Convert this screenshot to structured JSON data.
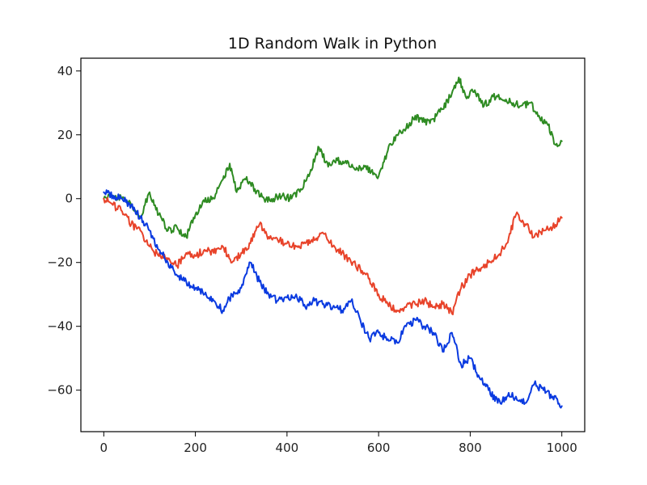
{
  "chart_data": {
    "type": "line",
    "title": "1D Random Walk in Python",
    "xlabel": "",
    "ylabel": "",
    "xlim": [
      -50,
      1050
    ],
    "ylim": [
      -73,
      44
    ],
    "xticks": [
      0,
      200,
      400,
      600,
      800,
      1000
    ],
    "yticks": [
      40,
      20,
      0,
      -20,
      -40,
      -60
    ],
    "tick_labels_x": [
      "0",
      "200",
      "400",
      "600",
      "800",
      "1000"
    ],
    "tick_labels_y": [
      "40",
      "20",
      "0",
      "−20",
      "−40",
      "−60"
    ],
    "grid": false,
    "legend": "none",
    "series": [
      {
        "color": "#2e8b22",
        "x": [
          0,
          20,
          40,
          60,
          80,
          100,
          120,
          140,
          160,
          180,
          200,
          220,
          240,
          260,
          275,
          290,
          310,
          330,
          350,
          370,
          390,
          410,
          430,
          450,
          470,
          490,
          510,
          530,
          550,
          570,
          590,
          600,
          620,
          640,
          660,
          680,
          700,
          720,
          740,
          760,
          775,
          790,
          810,
          830,
          850,
          870,
          890,
          910,
          930,
          950,
          970,
          985,
          1000
        ],
        "y": [
          0,
          1,
          0,
          -2,
          -6,
          2,
          -5,
          -10,
          -9,
          -12,
          -5,
          -1,
          0,
          6,
          11,
          2,
          6,
          3,
          0,
          0,
          1,
          0,
          3,
          8,
          16,
          10,
          12,
          11,
          9,
          10,
          8,
          7,
          15,
          20,
          22,
          26,
          24,
          25,
          28,
          33,
          38,
          32,
          34,
          29,
          32,
          31,
          30,
          29,
          30,
          26,
          23,
          17,
          18
        ]
      },
      {
        "color": "#e8432a",
        "x": [
          0,
          20,
          40,
          60,
          80,
          100,
          120,
          140,
          160,
          180,
          200,
          220,
          240,
          260,
          280,
          300,
          320,
          340,
          360,
          380,
          400,
          420,
          440,
          460,
          480,
          500,
          520,
          540,
          560,
          580,
          600,
          620,
          640,
          660,
          680,
          700,
          720,
          740,
          760,
          780,
          800,
          820,
          840,
          860,
          880,
          900,
          920,
          940,
          960,
          980,
          1000
        ],
        "y": [
          0,
          -2,
          -4,
          -8,
          -10,
          -15,
          -18,
          -19,
          -21,
          -17,
          -18,
          -16,
          -17,
          -15,
          -20,
          -17,
          -14,
          -8,
          -12,
          -13,
          -14,
          -15,
          -14,
          -13,
          -11,
          -15,
          -17,
          -20,
          -22,
          -25,
          -30,
          -33,
          -35,
          -34,
          -33,
          -32,
          -34,
          -33,
          -36,
          -28,
          -24,
          -22,
          -20,
          -18,
          -14,
          -5,
          -8,
          -12,
          -10,
          -9,
          -6
        ]
      },
      {
        "color": "#0a3ae0",
        "x": [
          0,
          20,
          40,
          60,
          80,
          100,
          120,
          140,
          160,
          180,
          200,
          220,
          240,
          260,
          280,
          300,
          320,
          340,
          360,
          380,
          400,
          420,
          440,
          460,
          480,
          500,
          520,
          540,
          560,
          580,
          600,
          620,
          640,
          660,
          680,
          700,
          720,
          740,
          760,
          780,
          800,
          820,
          840,
          860,
          880,
          900,
          920,
          940,
          960,
          980,
          1000
        ],
        "y": [
          2,
          1,
          0,
          -2,
          -6,
          -10,
          -16,
          -20,
          -24,
          -26,
          -28,
          -30,
          -32,
          -35,
          -30,
          -28,
          -20,
          -26,
          -30,
          -32,
          -31,
          -30,
          -34,
          -32,
          -33,
          -34,
          -35,
          -32,
          -38,
          -44,
          -42,
          -44,
          -45,
          -40,
          -38,
          -40,
          -42,
          -48,
          -42,
          -52,
          -50,
          -56,
          -60,
          -64,
          -62,
          -62,
          -64,
          -58,
          -60,
          -62,
          -65
        ]
      }
    ]
  }
}
